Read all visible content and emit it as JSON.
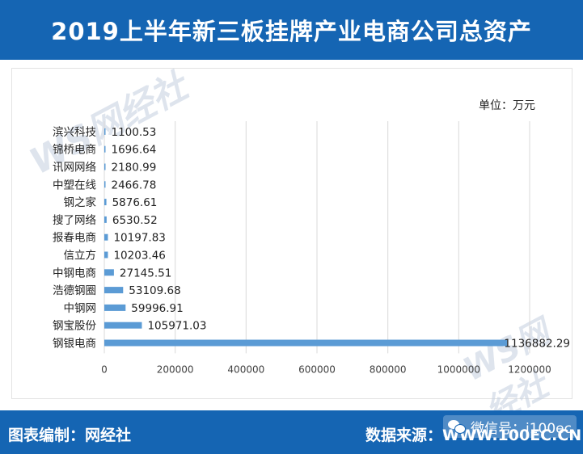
{
  "header": {
    "title": "2019上半年新三板挂牌产业电商公司总资产"
  },
  "unit_label": "单位：万元",
  "watermark": {
    "text": "WS网经社"
  },
  "footer": {
    "left": "图表编制：网经社",
    "right": "数据来源：WWW.100EC.CN",
    "wechat": "微信号：i100ec"
  },
  "colors": {
    "bar": "#5b9bd5",
    "header_bg": "#1565b3",
    "grid": "#d9d9d9"
  },
  "chart_data": {
    "type": "bar",
    "orientation": "horizontal",
    "title": "2019上半年新三板挂牌产业电商公司总资产",
    "xlabel": "",
    "ylabel": "",
    "unit": "万元",
    "xlim": [
      0,
      1200000
    ],
    "xticks": [
      0,
      200000,
      400000,
      600000,
      800000,
      1000000,
      1200000
    ],
    "grid": true,
    "categories": [
      "滨兴科技",
      "锦桥电商",
      "讯网网络",
      "中塑在线",
      "钢之家",
      "搜了网络",
      "报春电商",
      "信立方",
      "中钢电商",
      "浩德钢圈",
      "中钢网",
      "钢宝股份",
      "钢银电商"
    ],
    "values": [
      1100.53,
      1696.64,
      2180.99,
      2466.78,
      5876.61,
      6530.52,
      10197.83,
      10203.46,
      27145.51,
      53109.68,
      59996.91,
      105971.03,
      1136882.29
    ],
    "value_labels": [
      "1100.53",
      "1696.64",
      "2180.99",
      "2466.78",
      "5876.61",
      "6530.52",
      "10197.83",
      "10203.46",
      "27145.51",
      "53109.68",
      "59996.91",
      "105971.03",
      "1136882.29"
    ]
  }
}
